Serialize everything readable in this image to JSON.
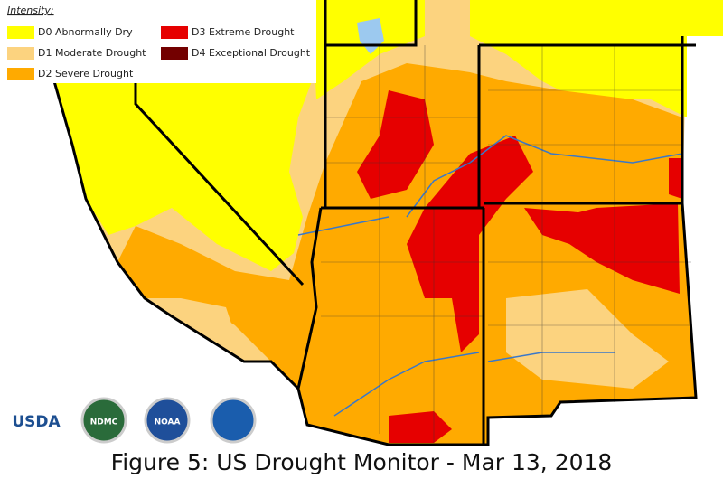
{
  "legend": {
    "title": "Intensity:",
    "items": [
      {
        "label": "D0 Abnormally Dry",
        "color": "#ffff00"
      },
      {
        "label": "D1 Moderate Drought",
        "color": "#fcd37f"
      },
      {
        "label": "D2 Severe Drought",
        "color": "#ffaa00"
      },
      {
        "label": "D3 Extreme Drought",
        "color": "#e60000"
      },
      {
        "label": "D4 Exceptional Drought",
        "color": "#730000"
      }
    ]
  },
  "logos": [
    "USDA",
    "NDMC",
    "NOAA"
  ],
  "caption": "Figure 5: US Drought Monitor - Mar 13, 2018"
}
